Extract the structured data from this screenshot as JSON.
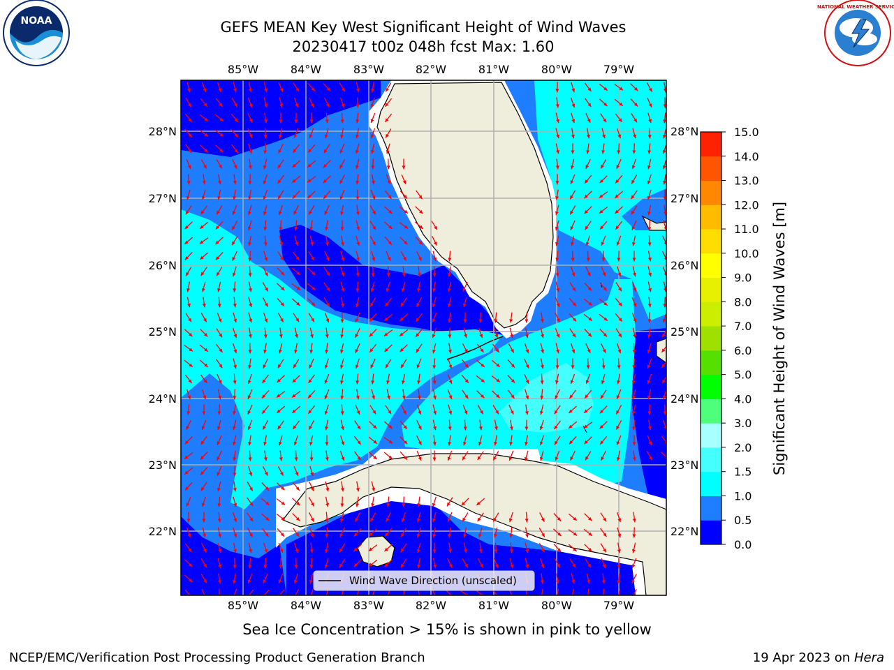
{
  "header": {
    "title": "GEFS MEAN Key West Significant Height of Wind Waves",
    "subtitle": "20230417 t00z 048h fcst   Max: 1.60"
  },
  "logos": {
    "left": "NOAA",
    "right": "NATIONAL WEATHER SERVICE"
  },
  "map": {
    "lon_labels": [
      "85°W",
      "84°W",
      "83°W",
      "82°W",
      "81°W",
      "80°W",
      "79°W"
    ],
    "lat_labels": [
      "28°N",
      "27°N",
      "26°N",
      "25°N",
      "24°N",
      "23°N",
      "22°N"
    ],
    "legend_label": "Wind Wave Direction (unscaled)",
    "colors": {
      "land": "#efeedc",
      "ocean_0_0.5": "#0000ff",
      "ocean_0.5_1.0": "#1e7eff",
      "ocean_1.0_1.5": "#00ffff",
      "ocean_1.5_2.0": "#45ffff",
      "ocean_2.0_3.0": "#a8ffff",
      "arrow": "#ff0000",
      "grid": "#b0b0b0"
    }
  },
  "colorbar": {
    "label": "Significant Height of Wind Waves [m]",
    "ticks": [
      "0.0",
      "0.5",
      "1.0",
      "1.5",
      "2.0",
      "3.0",
      "4.0",
      "5.0",
      "6.0",
      "7.0",
      "8.0",
      "9.0",
      "10.0",
      "11.0",
      "12.0",
      "13.0",
      "14.0",
      "15.0"
    ],
    "colors": [
      "#0000ff",
      "#1e7eff",
      "#00ffff",
      "#45ffff",
      "#a8ffff",
      "#4dff7a",
      "#00ff00",
      "#55e000",
      "#a0e000",
      "#ccee00",
      "#e6f000",
      "#ffff00",
      "#ffdd00",
      "#ffbb00",
      "#ff8800",
      "#ff5500",
      "#ff2200"
    ]
  },
  "footer": {
    "ice_note": "Sea Ice Concentration > 15% is shown in pink to yellow",
    "branch": "NCEP/EMC/Verification Post Processing Product Generation Branch",
    "date": "19 Apr 2023 on",
    "host": "Hera"
  }
}
